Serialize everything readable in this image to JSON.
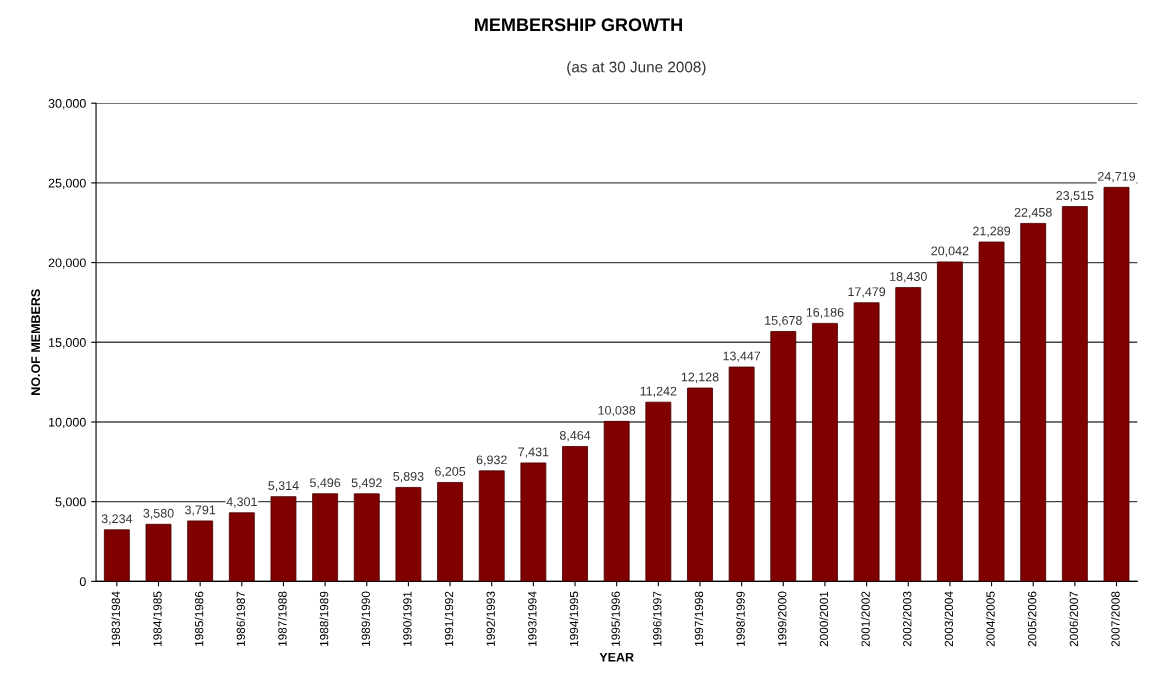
{
  "chart_data": {
    "type": "bar",
    "title": "MEMBERSHIP GROWTH",
    "subtitle": "(as at 30 June 2008)",
    "xlabel": "YEAR",
    "ylabel": "NO.OF MEMBERS",
    "categories": [
      "1983/1984",
      "1984/1985",
      "1985/1986",
      "1986/1987",
      "1987/1988",
      "1988/1989",
      "1989/1990",
      "1990/1991",
      "1991/1992",
      "1992/1993",
      "1993/1994",
      "1994/1995",
      "1995/1996",
      "1996/1997",
      "1997/1998",
      "1998/1999",
      "1999/2000",
      "2000/2001",
      "2001/2002",
      "2002/2003",
      "2003/2004",
      "2004/2005",
      "2005/2006",
      "2006/2007",
      "2007/2008"
    ],
    "values": [
      3234,
      3580,
      3791,
      4301,
      5314,
      5496,
      5492,
      5893,
      6205,
      6932,
      7431,
      8464,
      10038,
      11242,
      12128,
      13447,
      15678,
      16186,
      17479,
      18430,
      20042,
      21289,
      22458,
      23515,
      24719
    ],
    "value_labels": [
      "3,234",
      "3,580",
      "3,791",
      "4,301",
      "5,314",
      "5,496",
      "5,492",
      "5,893",
      "6,205",
      "6,932",
      "7,431",
      "8,464",
      "10,038",
      "11,242",
      "12,128",
      "13,447",
      "15,678",
      "16,186",
      "17,479",
      "18,430",
      "20,042",
      "21,289",
      "22,458",
      "23,515",
      "24,719"
    ],
    "color": "#800000",
    "grid": "y",
    "legend": false,
    "ylim": [
      0,
      30000
    ],
    "yticks": [
      0,
      {
        "value": 5000,
        "label": "5,000"
      },
      {
        "value": 10000,
        "label": "10,000"
      },
      {
        "value": 15000,
        "label": "15,000"
      },
      {
        "value": 20000,
        "label": "20,000"
      },
      {
        "value": 25000,
        "label": "25,000"
      },
      {
        "value": 30000,
        "label": "30,000"
      }
    ]
  }
}
